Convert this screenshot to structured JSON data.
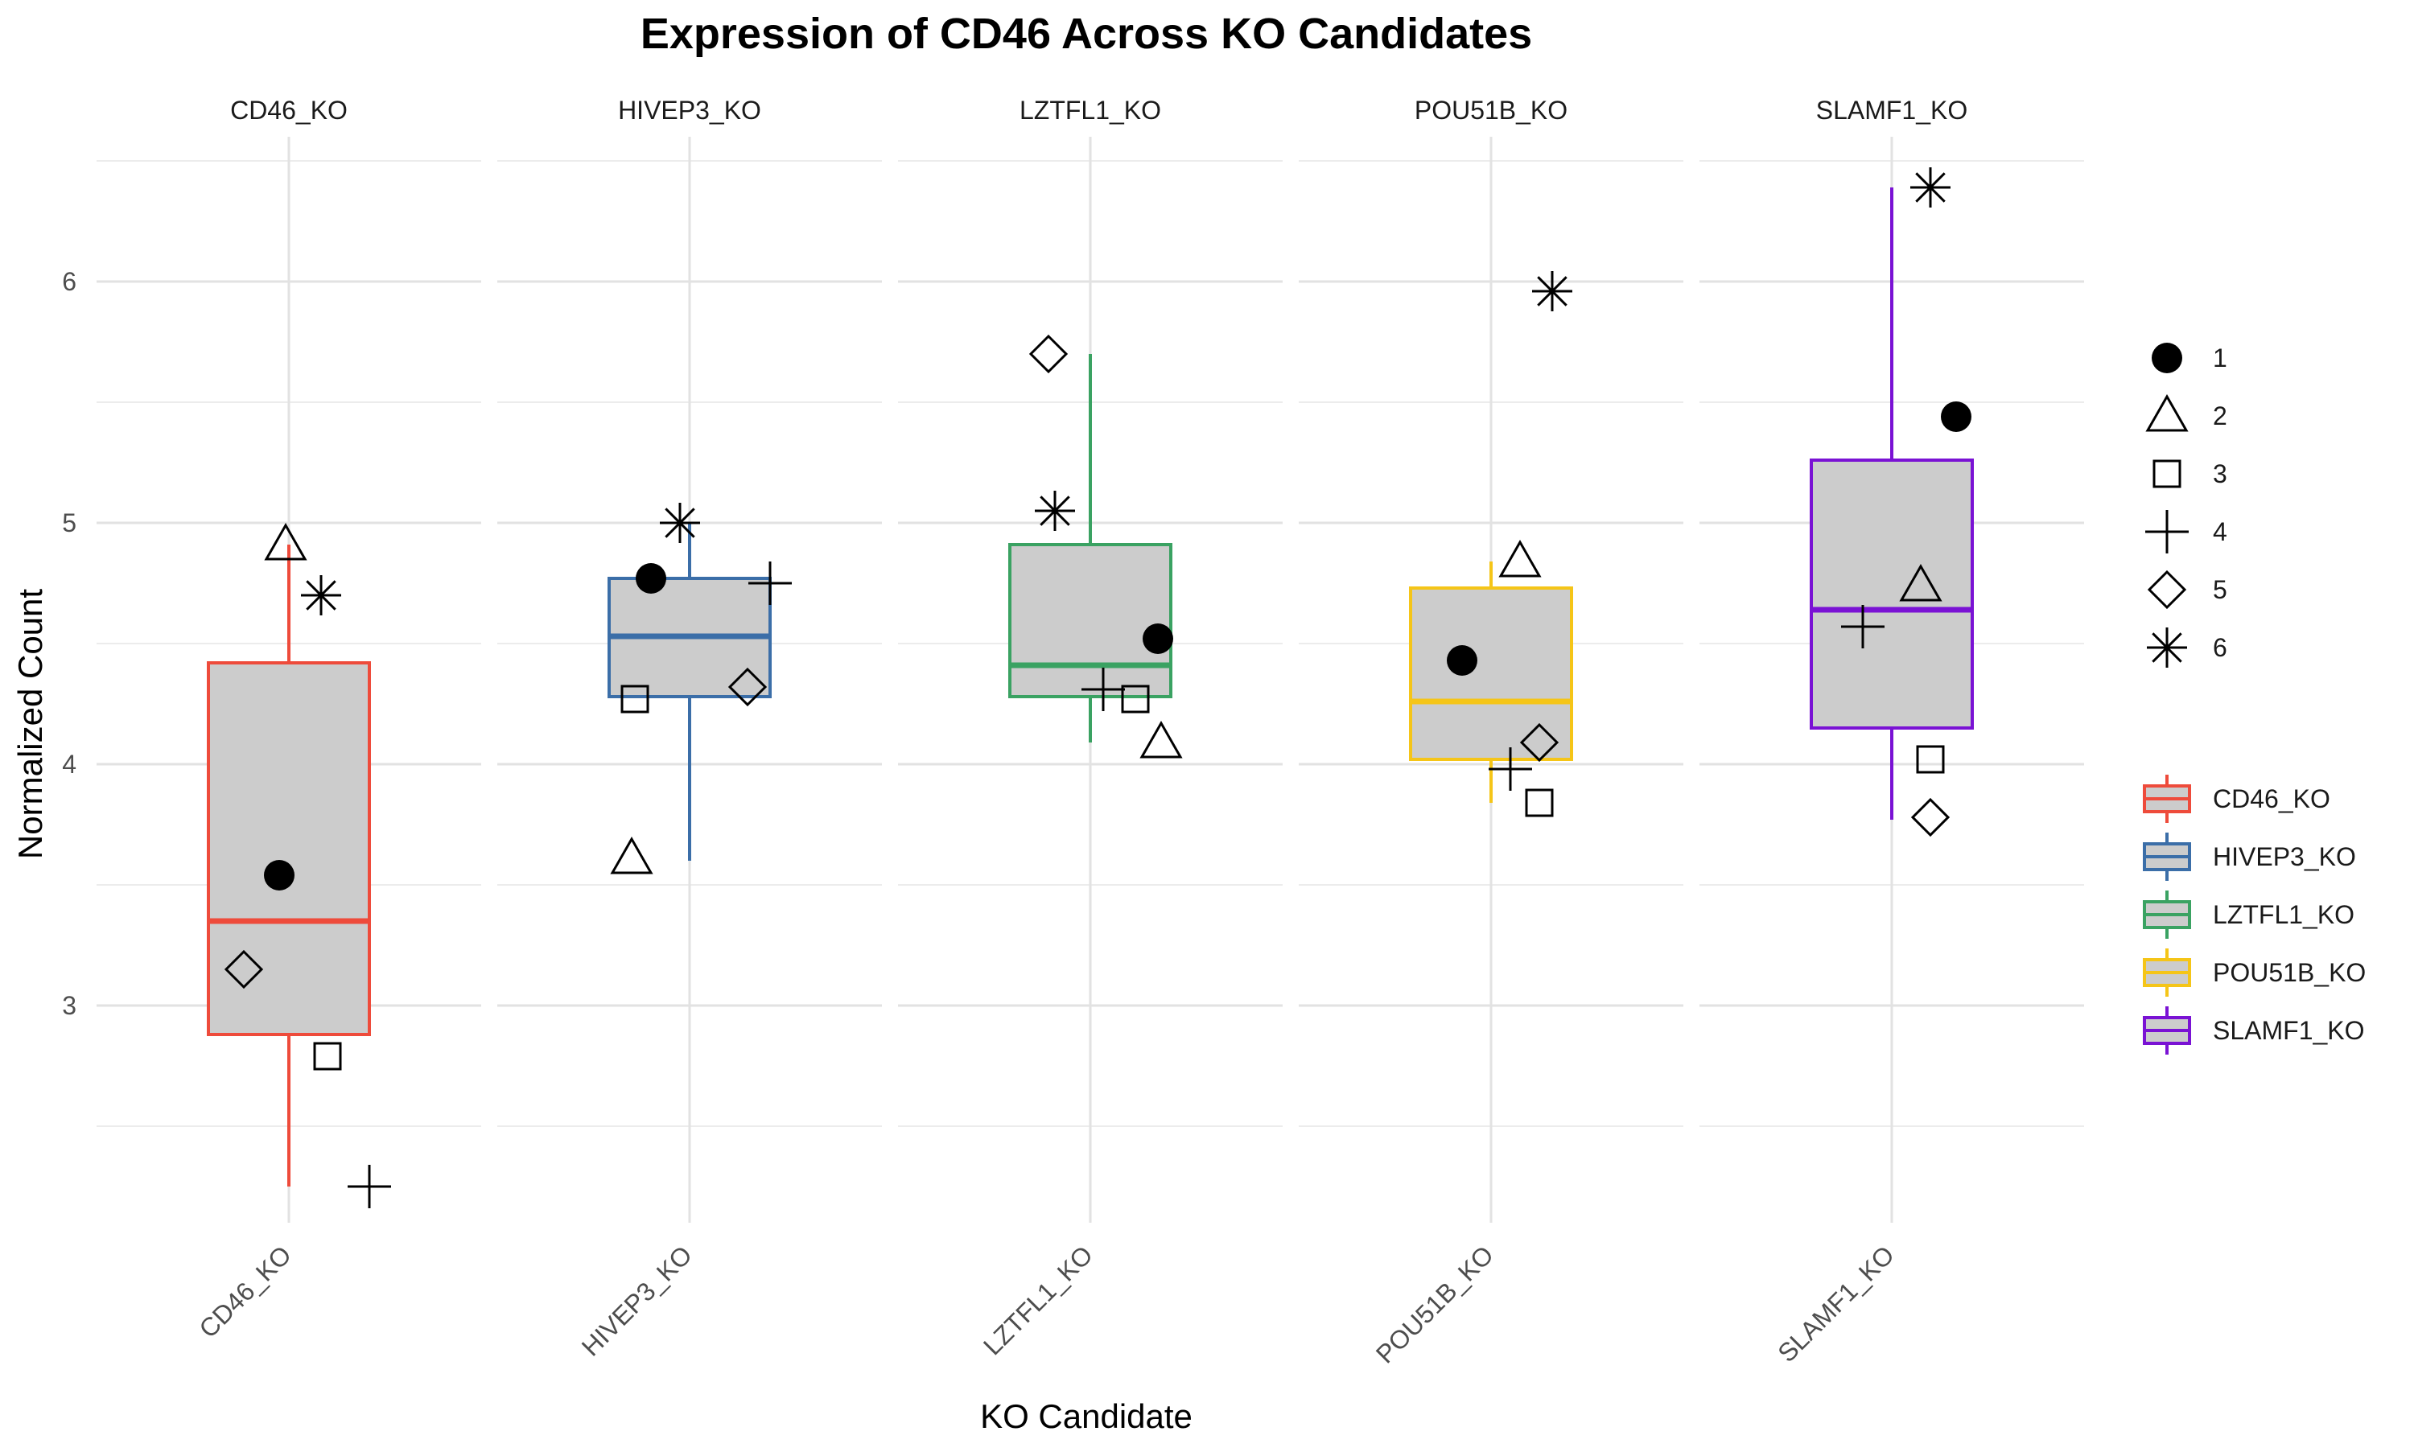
{
  "chart_data": {
    "type": "boxplot",
    "title": "Expression of CD46 Across KO Candidates",
    "xlabel": "KO Candidate",
    "ylabel": "Normalized Count",
    "ylim": [
      2.1,
      6.6
    ],
    "yticks": [
      3,
      4,
      5,
      6
    ],
    "grid": true,
    "facets": [
      "CD46_KO",
      "HIVEP3_KO",
      "LZTFL1_KO",
      "POU51B_KO",
      "SLAMF1_KO"
    ],
    "colors": {
      "CD46_KO": "#ee4b3b",
      "HIVEP3_KO": "#3b6ea8",
      "LZTFL1_KO": "#3aa262",
      "POU51B_KO": "#f5c518",
      "SLAMF1_KO": "#7a12d4",
      "box_fill": "#cccccc"
    },
    "boxes": [
      {
        "name": "CD46_KO",
        "min": 2.25,
        "q1": 2.88,
        "median": 3.35,
        "q3": 4.42,
        "max": 4.91
      },
      {
        "name": "HIVEP3_KO",
        "min": 3.6,
        "q1": 4.28,
        "median": 4.53,
        "q3": 4.77,
        "max": 5.0
      },
      {
        "name": "LZTFL1_KO",
        "min": 4.09,
        "q1": 4.28,
        "median": 4.41,
        "q3": 4.91,
        "max": 5.7
      },
      {
        "name": "POU51B_KO",
        "min": 3.84,
        "q1": 4.02,
        "median": 4.26,
        "q3": 4.73,
        "max": 4.84
      },
      {
        "name": "SLAMF1_KO",
        "min": 3.77,
        "q1": 4.15,
        "median": 4.64,
        "q3": 5.26,
        "max": 6.39
      }
    ],
    "points": [
      {
        "facet": "CD46_KO",
        "rep": "1",
        "x": -0.03,
        "y": 3.54
      },
      {
        "facet": "CD46_KO",
        "rep": "2",
        "x": -0.01,
        "y": 4.91
      },
      {
        "facet": "CD46_KO",
        "rep": "3",
        "x": 0.12,
        "y": 2.79
      },
      {
        "facet": "CD46_KO",
        "rep": "4",
        "x": 0.25,
        "y": 2.25
      },
      {
        "facet": "CD46_KO",
        "rep": "5",
        "x": -0.14,
        "y": 3.15
      },
      {
        "facet": "CD46_KO",
        "rep": "6",
        "x": 0.1,
        "y": 4.7
      },
      {
        "facet": "HIVEP3_KO",
        "rep": "1",
        "x": -0.12,
        "y": 4.77
      },
      {
        "facet": "HIVEP3_KO",
        "rep": "2",
        "x": -0.18,
        "y": 3.61
      },
      {
        "facet": "HIVEP3_KO",
        "rep": "3",
        "x": -0.17,
        "y": 4.27
      },
      {
        "facet": "HIVEP3_KO",
        "rep": "4",
        "x": 0.25,
        "y": 4.75
      },
      {
        "facet": "HIVEP3_KO",
        "rep": "5",
        "x": 0.18,
        "y": 4.32
      },
      {
        "facet": "HIVEP3_KO",
        "rep": "6",
        "x": -0.03,
        "y": 5.0
      },
      {
        "facet": "LZTFL1_KO",
        "rep": "1",
        "x": 0.21,
        "y": 4.52
      },
      {
        "facet": "LZTFL1_KO",
        "rep": "2",
        "x": 0.22,
        "y": 4.09
      },
      {
        "facet": "LZTFL1_KO",
        "rep": "3",
        "x": 0.14,
        "y": 4.27
      },
      {
        "facet": "LZTFL1_KO",
        "rep": "4",
        "x": 0.04,
        "y": 4.31
      },
      {
        "facet": "LZTFL1_KO",
        "rep": "5",
        "x": -0.13,
        "y": 5.7
      },
      {
        "facet": "LZTFL1_KO",
        "rep": "6",
        "x": -0.11,
        "y": 5.05
      },
      {
        "facet": "POU51B_KO",
        "rep": "1",
        "x": -0.09,
        "y": 4.43
      },
      {
        "facet": "POU51B_KO",
        "rep": "2",
        "x": 0.09,
        "y": 4.84
      },
      {
        "facet": "POU51B_KO",
        "rep": "3",
        "x": 0.15,
        "y": 3.84
      },
      {
        "facet": "POU51B_KO",
        "rep": "4",
        "x": 0.06,
        "y": 3.98
      },
      {
        "facet": "POU51B_KO",
        "rep": "5",
        "x": 0.15,
        "y": 4.09
      },
      {
        "facet": "POU51B_KO",
        "rep": "6",
        "x": 0.19,
        "y": 5.96
      },
      {
        "facet": "SLAMF1_KO",
        "rep": "1",
        "x": 0.2,
        "y": 5.44
      },
      {
        "facet": "SLAMF1_KO",
        "rep": "2",
        "x": 0.09,
        "y": 4.74
      },
      {
        "facet": "SLAMF1_KO",
        "rep": "3",
        "x": 0.12,
        "y": 4.02
      },
      {
        "facet": "SLAMF1_KO",
        "rep": "4",
        "x": -0.09,
        "y": 4.57
      },
      {
        "facet": "SLAMF1_KO",
        "rep": "5",
        "x": 0.12,
        "y": 3.78
      },
      {
        "facet": "SLAMF1_KO",
        "rep": "6",
        "x": 0.12,
        "y": 6.39
      }
    ],
    "shape_legend": {
      "entries": [
        {
          "label": "1",
          "shape": "filled-circle"
        },
        {
          "label": "2",
          "shape": "open-triangle"
        },
        {
          "label": "3",
          "shape": "open-square"
        },
        {
          "label": "4",
          "shape": "plus"
        },
        {
          "label": "5",
          "shape": "open-diamond"
        },
        {
          "label": "6",
          "shape": "asterisk"
        }
      ],
      "placement": "right"
    },
    "color_legend": {
      "entries": [
        "CD46_KO",
        "HIVEP3_KO",
        "LZTFL1_KO",
        "POU51B_KO",
        "SLAMF1_KO"
      ],
      "placement": "right"
    }
  }
}
